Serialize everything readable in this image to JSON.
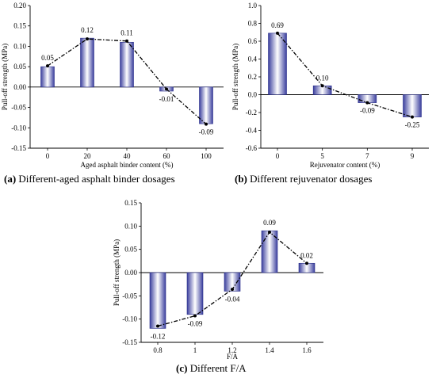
{
  "captions": [
    {
      "tag": "(a)",
      "text": " Different-aged asphalt binder dosages"
    },
    {
      "tag": "(b)",
      "text": " Different rejuvenator dosages"
    },
    {
      "tag": "(c)",
      "text": " Different F/A"
    }
  ],
  "colors": {
    "bar_edge": "#2a2f8a",
    "bar_light": "#ffffff",
    "bar_dark": "#3b3f9e",
    "line": "#000000"
  },
  "chart_data": [
    {
      "type": "bar",
      "overlay": "dash-dot line with markers",
      "categories": [
        "0",
        "20",
        "40",
        "60",
        "100"
      ],
      "values": [
        0.05,
        0.12,
        0.11,
        -0.01,
        -0.09
      ],
      "line_values": [
        0.052,
        0.118,
        0.113,
        -0.005,
        -0.091
      ],
      "data_labels": [
        "0.05",
        "0.12",
        "0.11",
        "-0.01",
        "-0.09"
      ],
      "ylim": [
        -0.15,
        0.2
      ],
      "yticks": [
        -0.15,
        -0.1,
        -0.05,
        0.0,
        0.05,
        0.1,
        0.15,
        0.2
      ],
      "ytick_labels": [
        "-0.15",
        "-0.10",
        "-0.05",
        "0.00",
        "0.05",
        "0.10",
        "0.15",
        "0.20"
      ],
      "xlabel": "Aged asphalt binder content (%)",
      "ylabel": "Pull-off strength (MPa)",
      "grid": false
    },
    {
      "type": "bar",
      "overlay": "dash-dot line with markers",
      "categories": [
        "0",
        "5",
        "7",
        "9"
      ],
      "values": [
        0.69,
        0.1,
        -0.09,
        -0.25
      ],
      "line_values": [
        0.69,
        0.1,
        -0.09,
        -0.25
      ],
      "data_labels": [
        "0.69",
        "0.10",
        "-0.09",
        "-0.25"
      ],
      "ylim": [
        -0.6,
        1.0
      ],
      "yticks": [
        -0.6,
        -0.4,
        -0.2,
        0.0,
        0.2,
        0.4,
        0.6,
        0.8,
        1.0
      ],
      "ytick_labels": [
        "-0.6",
        "-0.4",
        "-0.2",
        "0.0",
        "0.2",
        "0.4",
        "0.6",
        "0.8",
        "1.0"
      ],
      "xlabel": "Rejuvenator content (%)",
      "ylabel": "Pull-off strength (MPa)",
      "grid": false
    },
    {
      "type": "bar",
      "overlay": "dash-dot line with markers",
      "categories": [
        "0.8",
        "1",
        "1.2",
        "1.4",
        "1.6"
      ],
      "values": [
        -0.12,
        -0.09,
        -0.04,
        0.09,
        0.02
      ],
      "line_values": [
        -0.115,
        -0.093,
        -0.036,
        0.087,
        0.02
      ],
      "data_labels": [
        "-0.12",
        "-0.09",
        "-0.04",
        "0.09",
        "0.02"
      ],
      "ylim": [
        -0.15,
        0.15
      ],
      "yticks": [
        -0.15,
        -0.1,
        -0.05,
        0.0,
        0.05,
        0.1,
        0.15
      ],
      "ytick_labels": [
        "-0.15",
        "-0.10",
        "-0.05",
        "0.00",
        "0.05",
        "0.10",
        "0.15"
      ],
      "xlabel": "F/A",
      "ylabel": "Pull-off strength (MPa)",
      "grid": false
    }
  ]
}
